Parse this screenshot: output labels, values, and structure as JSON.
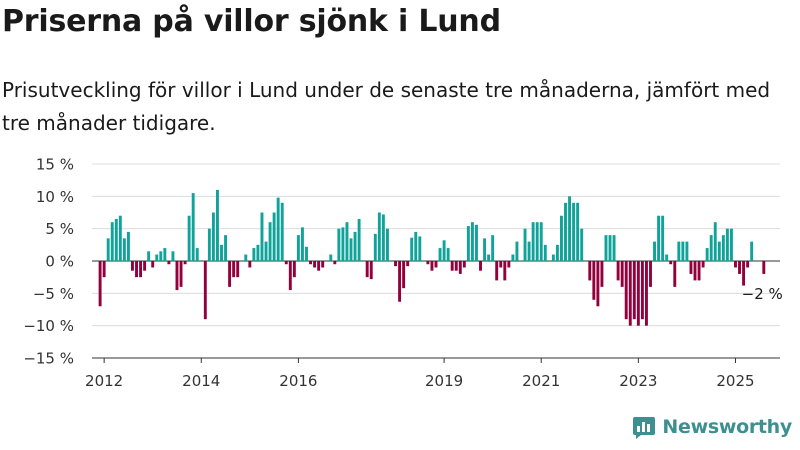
{
  "header": {
    "title": "Priserna på villor sjönk i Lund",
    "subtitle": "Prisutveckling för villor i Lund under de senaste tre månaderna, jämfört med tre månader tidigare."
  },
  "brand": {
    "name": "Newsworthy",
    "icon": "newsworthy-logo-icon",
    "color": "#3d8f90"
  },
  "colors": {
    "positive": "#0fa39a",
    "negative": "#94003c",
    "grid": "#dcdcdc",
    "axis": "#333333"
  },
  "chart_data": {
    "type": "bar",
    "title": "Priserna på villor sjönk i Lund",
    "subtitle": "Prisutveckling för villor i Lund under de senaste tre månaderna, jämfört med tre månader tidigare.",
    "xlabel": "",
    "ylabel": "",
    "unit": "%",
    "ylim": [
      -15,
      15
    ],
    "yticks": [
      15,
      10,
      5,
      0,
      -5,
      -10,
      -15
    ],
    "ytick_labels": [
      "15 %",
      "10 %",
      "5 %",
      "0 %",
      "−5 %",
      "−10 %",
      "−15 %"
    ],
    "x_start": "2011-12",
    "xlim": [
      "2011-10",
      "2025-12"
    ],
    "xticks": [
      "2012-01",
      "2014-01",
      "2016-01",
      "2019-01",
      "2021-01",
      "2023-01",
      "2025-01"
    ],
    "xtick_labels": [
      "2012",
      "2014",
      "2016",
      "2019",
      "2021",
      "2023",
      "2025"
    ],
    "grid": true,
    "annotation": {
      "text": "−2 %",
      "x": "2025-05",
      "y": -2
    },
    "values": [
      -7,
      -2.5,
      3.5,
      6,
      6.5,
      7,
      3.5,
      4.5,
      -1.5,
      -2.5,
      -2.5,
      -1.5,
      1.5,
      -1,
      1,
      1.5,
      2,
      -0.5,
      1.5,
      -4.5,
      -4,
      -0.5,
      7,
      10.5,
      2,
      0,
      -9,
      5,
      7.5,
      11,
      2.5,
      4,
      -4,
      -2.5,
      -2.5,
      0,
      1,
      -1,
      2,
      2.5,
      7.5,
      3,
      6,
      7.5,
      9.8,
      9,
      -0.5,
      -4.5,
      -2.5,
      4,
      5.2,
      2.2,
      -0.5,
      -1,
      -1.5,
      -1,
      0,
      1,
      -0.5,
      5,
      5.2,
      6,
      3.5,
      4.5,
      6.5,
      0,
      -2.5,
      -2.8,
      4.2,
      7.5,
      7.2,
      5,
      0,
      -0.8,
      -6.3,
      -4.2,
      -0.8,
      3.6,
      4.5,
      3.8,
      0,
      -0.5,
      -1.5,
      -1,
      2,
      3.2,
      2,
      -1.5,
      -1.5,
      -2,
      -1,
      5.4,
      6,
      5.6,
      -1.5,
      3.5,
      1,
      4,
      -3,
      -1,
      -3,
      -1,
      1,
      3,
      0,
      5,
      3,
      6,
      6,
      6,
      2.5,
      0,
      1,
      2.5,
      7,
      9,
      10,
      9,
      9,
      5,
      0,
      -3,
      -6,
      -7,
      -4,
      4,
      4,
      4,
      -3,
      -4,
      -9,
      -10,
      -9,
      -10,
      -9,
      -10,
      -4,
      3,
      7,
      7,
      1,
      -0.5,
      -4,
      3,
      3,
      3,
      -2,
      -3,
      -3,
      -1,
      2,
      4,
      6,
      3,
      4,
      5,
      5,
      -1,
      -2,
      -3.8,
      -1,
      3,
      0,
      0,
      -2
    ]
  }
}
